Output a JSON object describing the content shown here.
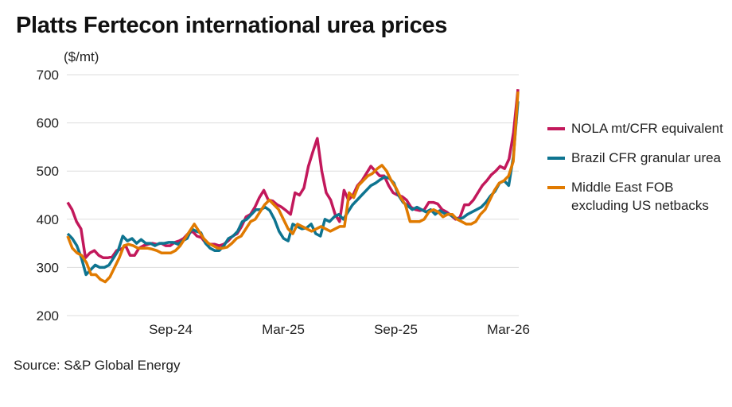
{
  "chart_data": {
    "type": "line",
    "title": "Platts Fertecon international urea prices",
    "ylabel": "($/mt)",
    "xlabel": "",
    "ylim": [
      200,
      700
    ],
    "yticks": [
      200,
      300,
      400,
      500,
      600,
      700
    ],
    "xtick_labels": [
      "Sep-24",
      "Mar-25",
      "Sep-25",
      "Mar-26"
    ],
    "x_range": [
      "Mar-24",
      "Mar-26"
    ],
    "frequency": "weekly",
    "grid": true,
    "legend_position": "right",
    "source": "Source: S&P Global Energy",
    "series": [
      {
        "name": "NOLA mt/CFR equivalent",
        "color": "#c2185b",
        "values": [
          435,
          420,
          395,
          380,
          320,
          330,
          335,
          325,
          320,
          320,
          322,
          335,
          338,
          345,
          325,
          325,
          340,
          345,
          348,
          350,
          348,
          350,
          345,
          345,
          352,
          355,
          360,
          370,
          375,
          365,
          362,
          350,
          348,
          348,
          345,
          348,
          355,
          365,
          370,
          385,
          405,
          410,
          425,
          445,
          460,
          440,
          438,
          430,
          425,
          418,
          410,
          455,
          450,
          465,
          510,
          540,
          568,
          500,
          455,
          440,
          410,
          395,
          460,
          440,
          450,
          470,
          480,
          495,
          510,
          500,
          490,
          490,
          470,
          455,
          450,
          447,
          440,
          425,
          420,
          418,
          420,
          435,
          435,
          432,
          420,
          415,
          408,
          400,
          404,
          430,
          430,
          440,
          455,
          470,
          480,
          492,
          500,
          510,
          505,
          525,
          580,
          670
        ]
      },
      {
        "name": "Brazil CFR granular urea",
        "color": "#0e7490",
        "values": [
          370,
          360,
          345,
          320,
          285,
          295,
          305,
          300,
          300,
          305,
          320,
          335,
          365,
          355,
          360,
          350,
          358,
          350,
          350,
          345,
          350,
          350,
          352,
          352,
          348,
          355,
          360,
          380,
          375,
          372,
          350,
          340,
          335,
          335,
          345,
          360,
          365,
          375,
          395,
          400,
          410,
          420,
          420,
          425,
          418,
          400,
          375,
          360,
          355,
          390,
          385,
          380,
          382,
          390,
          370,
          365,
          400,
          395,
          405,
          410,
          400,
          415,
          430,
          440,
          450,
          460,
          470,
          475,
          482,
          488,
          485,
          475,
          450,
          435,
          428,
          420,
          425,
          420,
          415,
          420,
          410,
          418,
          412,
          410,
          405,
          400,
          403,
          410,
          415,
          420,
          425,
          435,
          448,
          458,
          475,
          480,
          470,
          530,
          645
        ]
      },
      {
        "name": "Middle East FOB excluding US netbacks",
        "color": "#e07a00",
        "values": [
          365,
          340,
          330,
          325,
          310,
          285,
          285,
          275,
          270,
          280,
          300,
          320,
          345,
          348,
          345,
          340,
          340,
          340,
          338,
          335,
          330,
          330,
          330,
          335,
          345,
          360,
          375,
          390,
          375,
          360,
          350,
          345,
          340,
          340,
          342,
          350,
          360,
          365,
          380,
          395,
          400,
          415,
          430,
          440,
          430,
          420,
          400,
          380,
          370,
          390,
          385,
          380,
          375,
          380,
          385,
          380,
          375,
          380,
          385,
          385,
          455,
          445,
          470,
          480,
          490,
          495,
          505,
          512,
          500,
          480,
          465,
          445,
          430,
          395,
          395,
          395,
          400,
          415,
          420,
          415,
          405,
          410,
          410,
          400,
          395,
          390,
          390,
          395,
          410,
          420,
          440,
          460,
          475,
          480,
          490,
          520,
          665
        ]
      }
    ]
  }
}
